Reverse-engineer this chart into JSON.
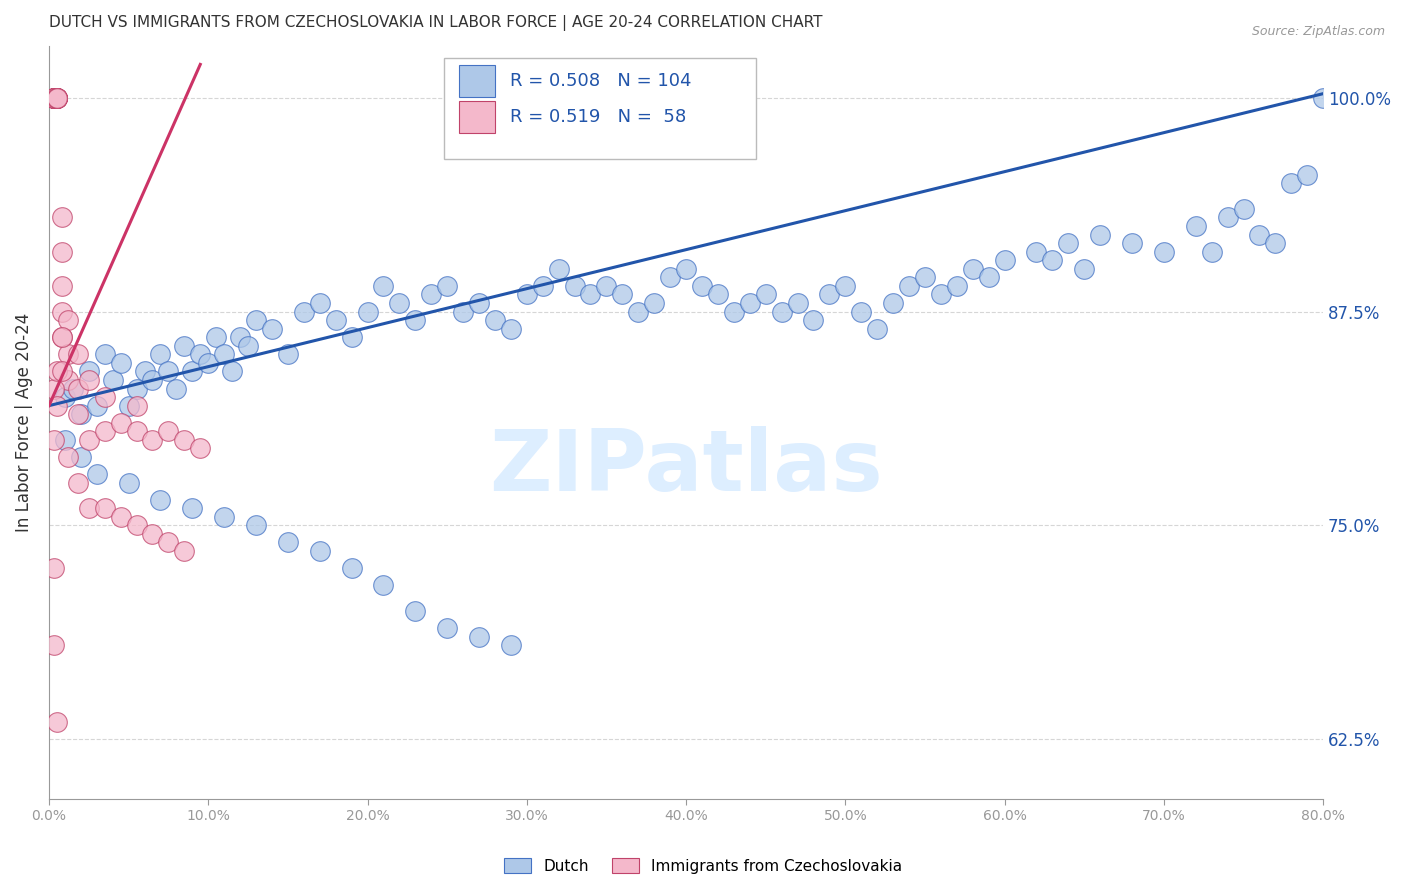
{
  "title": "DUTCH VS IMMIGRANTS FROM CZECHOSLOVAKIA IN LABOR FORCE | AGE 20-24 CORRELATION CHART",
  "source": "Source: ZipAtlas.com",
  "ylabel": "In Labor Force | Age 20-24",
  "x_tick_labels": [
    "0.0%",
    "10.0%",
    "20.0%",
    "30.0%",
    "40.0%",
    "50.0%",
    "60.0%",
    "70.0%",
    "80.0%"
  ],
  "x_tick_positions": [
    0,
    10,
    20,
    30,
    40,
    50,
    60,
    70,
    80
  ],
  "y_tick_labels": [
    "62.5%",
    "75.0%",
    "87.5%",
    "100.0%"
  ],
  "y_tick_positions": [
    62.5,
    75.0,
    87.5,
    100.0
  ],
  "xlim": [
    0,
    80
  ],
  "ylim": [
    59,
    103
  ],
  "legend_entries": [
    {
      "label": "Dutch",
      "R": "0.508",
      "N": "104",
      "color": "#aec8e8"
    },
    {
      "label": "Immigrants from Czechoslovakia",
      "R": "0.519",
      "N": "58",
      "color": "#f4b8cb"
    }
  ],
  "watermark": "ZIPatlas",
  "dutch_scatter_x": [
    1.0,
    1.5,
    2.0,
    2.5,
    3.0,
    3.5,
    4.0,
    4.5,
    5.0,
    5.5,
    6.0,
    6.5,
    7.0,
    7.5,
    8.0,
    8.5,
    9.0,
    9.5,
    10.0,
    10.5,
    11.0,
    11.5,
    12.0,
    12.5,
    13.0,
    14.0,
    15.0,
    16.0,
    17.0,
    18.0,
    19.0,
    20.0,
    21.0,
    22.0,
    23.0,
    24.0,
    25.0,
    26.0,
    27.0,
    28.0,
    29.0,
    30.0,
    31.0,
    32.0,
    33.0,
    34.0,
    35.0,
    36.0,
    37.0,
    38.0,
    39.0,
    40.0,
    41.0,
    42.0,
    43.0,
    44.0,
    45.0,
    46.0,
    47.0,
    48.0,
    49.0,
    50.0,
    51.0,
    52.0,
    53.0,
    54.0,
    55.0,
    56.0,
    57.0,
    58.0,
    59.0,
    60.0,
    62.0,
    63.0,
    64.0,
    65.0,
    66.0,
    68.0,
    70.0,
    72.0,
    73.0,
    74.0,
    75.0,
    76.0,
    77.0,
    78.0,
    79.0,
    80.0,
    1.0,
    2.0,
    3.0,
    5.0,
    7.0,
    9.0,
    11.0,
    13.0,
    15.0,
    17.0,
    19.0,
    21.0,
    23.0,
    25.0,
    27.0,
    29.0
  ],
  "dutch_scatter_y": [
    82.5,
    83.0,
    81.5,
    84.0,
    82.0,
    85.0,
    83.5,
    84.5,
    82.0,
    83.0,
    84.0,
    83.5,
    85.0,
    84.0,
    83.0,
    85.5,
    84.0,
    85.0,
    84.5,
    86.0,
    85.0,
    84.0,
    86.0,
    85.5,
    87.0,
    86.5,
    85.0,
    87.5,
    88.0,
    87.0,
    86.0,
    87.5,
    89.0,
    88.0,
    87.0,
    88.5,
    89.0,
    87.5,
    88.0,
    87.0,
    86.5,
    88.5,
    89.0,
    90.0,
    89.0,
    88.5,
    89.0,
    88.5,
    87.5,
    88.0,
    89.5,
    90.0,
    89.0,
    88.5,
    87.5,
    88.0,
    88.5,
    87.5,
    88.0,
    87.0,
    88.5,
    89.0,
    87.5,
    86.5,
    88.0,
    89.0,
    89.5,
    88.5,
    89.0,
    90.0,
    89.5,
    90.5,
    91.0,
    90.5,
    91.5,
    90.0,
    92.0,
    91.5,
    91.0,
    92.5,
    91.0,
    93.0,
    93.5,
    92.0,
    91.5,
    95.0,
    95.5,
    100.0,
    80.0,
    79.0,
    78.0,
    77.5,
    76.5,
    76.0,
    75.5,
    75.0,
    74.0,
    73.5,
    72.5,
    71.5,
    70.0,
    69.0,
    68.5,
    68.0
  ],
  "czech_scatter_x": [
    0.3,
    0.3,
    0.3,
    0.3,
    0.3,
    0.3,
    0.3,
    0.3,
    0.3,
    0.3,
    0.5,
    0.5,
    0.5,
    0.5,
    0.5,
    0.5,
    0.5,
    0.5,
    0.8,
    0.8,
    0.8,
    0.8,
    0.8,
    1.2,
    1.2,
    1.2,
    1.8,
    1.8,
    1.8,
    2.5,
    2.5,
    3.5,
    3.5,
    4.5,
    5.5,
    5.5,
    6.5,
    7.5,
    8.5,
    9.5,
    0.3,
    0.3,
    0.5,
    0.5,
    0.8,
    0.8,
    1.2,
    1.8,
    2.5,
    3.5,
    4.5,
    5.5,
    6.5,
    7.5,
    8.5,
    0.3,
    0.3,
    0.5
  ],
  "czech_scatter_y": [
    100.0,
    100.0,
    100.0,
    100.0,
    100.0,
    100.0,
    100.0,
    100.0,
    100.0,
    100.0,
    100.0,
    100.0,
    100.0,
    100.0,
    100.0,
    100.0,
    100.0,
    100.0,
    93.0,
    91.0,
    89.0,
    87.5,
    86.0,
    87.0,
    85.0,
    83.5,
    85.0,
    83.0,
    81.5,
    83.5,
    80.0,
    82.5,
    80.5,
    81.0,
    82.0,
    80.5,
    80.0,
    80.5,
    80.0,
    79.5,
    83.0,
    80.0,
    84.0,
    82.0,
    86.0,
    84.0,
    79.0,
    77.5,
    76.0,
    76.0,
    75.5,
    75.0,
    74.5,
    74.0,
    73.5,
    72.5,
    68.0,
    63.5
  ],
  "blue_fill_color": "#aec8e8",
  "blue_edge_color": "#4472c4",
  "pink_fill_color": "#f4b8cb",
  "pink_edge_color": "#c0436a",
  "blue_line_color": "#2255aa",
  "pink_line_color": "#cc3366",
  "title_color": "#333333",
  "axis_color": "#999999",
  "grid_color": "#cccccc",
  "right_label_color": "#2255aa",
  "watermark_color": "#ddeeff"
}
